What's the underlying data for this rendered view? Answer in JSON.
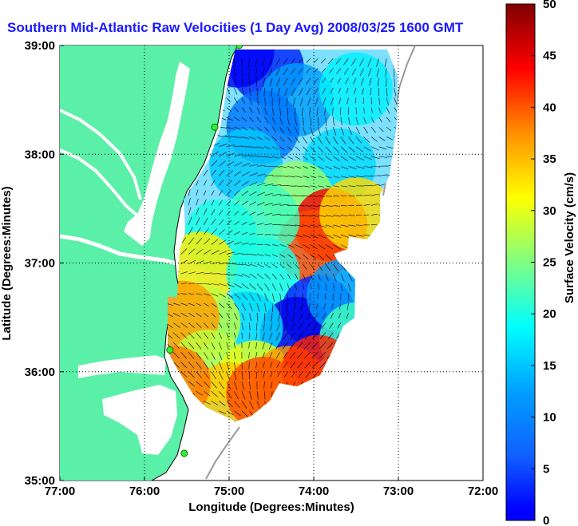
{
  "title": "Southern Mid-Atlantic Raw Velocities (1 Day Avg) 2008/03/25 1600 GMT",
  "xlabel": "Longitude (Degrees:Minutes)",
  "ylabel": "Latitude (Degrees:Minutes)",
  "colorbar_label": "Surface Velocity (cm/s)",
  "x_ticks": [
    "77:00",
    "76:00",
    "75:00",
    "74:00",
    "73:00",
    "72:00"
  ],
  "y_ticks": [
    "39:00",
    "38:00",
    "37:00",
    "36:00",
    "35:00"
  ],
  "colorbar_ticks": [
    "0",
    "5",
    "10",
    "15",
    "20",
    "25",
    "30",
    "35",
    "40",
    "45",
    "50"
  ],
  "chart_data": {
    "type": "heatmap",
    "title": "Southern Mid-Atlantic Raw Velocities (1 Day Avg) 2008/03/25 1600 GMT",
    "xlabel": "Longitude (Degrees:Minutes)",
    "ylabel": "Latitude (Degrees:Minutes)",
    "xlim": [
      -77,
      -72
    ],
    "ylim": [
      35,
      39
    ],
    "colorbar": {
      "label": "Surface Velocity (cm/s)",
      "range": [
        0,
        50
      ],
      "colormap": "jet"
    },
    "grid": true,
    "land_color": "#5af0a8",
    "radar_sites": [
      {
        "lon": -74.88,
        "lat": 39.0
      },
      {
        "lon": -75.17,
        "lat": 38.25
      },
      {
        "lon": -75.7,
        "lat": 36.2
      },
      {
        "lon": -75.53,
        "lat": 35.25
      }
    ],
    "velocity_regions": [
      {
        "lon": -74.55,
        "lat": 38.8,
        "speed": 8
      },
      {
        "lon": -74.9,
        "lat": 38.95,
        "speed": 6
      },
      {
        "lon": -74.2,
        "lat": 38.5,
        "speed": 14
      },
      {
        "lon": -73.5,
        "lat": 38.6,
        "speed": 18
      },
      {
        "lon": -74.6,
        "lat": 38.25,
        "speed": 12
      },
      {
        "lon": -74.8,
        "lat": 37.9,
        "speed": 16
      },
      {
        "lon": -73.7,
        "lat": 37.9,
        "speed": 17
      },
      {
        "lon": -74.2,
        "lat": 37.6,
        "speed": 26
      },
      {
        "lon": -73.8,
        "lat": 37.35,
        "speed": 44
      },
      {
        "lon": -74.0,
        "lat": 37.15,
        "speed": 40
      },
      {
        "lon": -73.5,
        "lat": 37.45,
        "speed": 33
      },
      {
        "lon": -74.6,
        "lat": 37.4,
        "speed": 22
      },
      {
        "lon": -75.1,
        "lat": 37.25,
        "speed": 20
      },
      {
        "lon": -75.35,
        "lat": 36.95,
        "speed": 32
      },
      {
        "lon": -74.6,
        "lat": 36.9,
        "speed": 20
      },
      {
        "lon": -73.95,
        "lat": 36.55,
        "speed": 8
      },
      {
        "lon": -74.2,
        "lat": 36.35,
        "speed": 5
      },
      {
        "lon": -73.65,
        "lat": 36.7,
        "speed": 14
      },
      {
        "lon": -73.5,
        "lat": 36.3,
        "speed": 22
      },
      {
        "lon": -74.8,
        "lat": 36.4,
        "speed": 17
      },
      {
        "lon": -75.3,
        "lat": 36.45,
        "speed": 28
      },
      {
        "lon": -75.55,
        "lat": 36.5,
        "speed": 36
      },
      {
        "lon": -75.25,
        "lat": 36.05,
        "speed": 28
      },
      {
        "lon": -74.7,
        "lat": 35.95,
        "speed": 30
      },
      {
        "lon": -74.3,
        "lat": 35.9,
        "speed": 36
      },
      {
        "lon": -73.95,
        "lat": 36.0,
        "speed": 42
      },
      {
        "lon": -75.0,
        "lat": 35.75,
        "speed": 34
      },
      {
        "lon": -74.6,
        "lat": 35.8,
        "speed": 40
      },
      {
        "lon": -75.65,
        "lat": 35.9,
        "speed": 38
      }
    ]
  }
}
